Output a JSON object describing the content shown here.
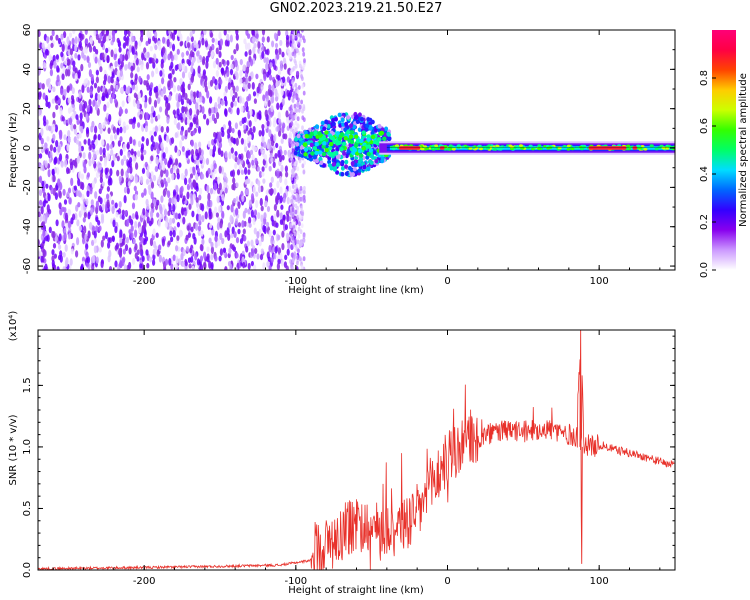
{
  "figure": {
    "title": "GN02.2023.219.21.50.E27"
  },
  "chart_data": [
    {
      "type": "heatmap",
      "xlabel": "Height of straight line (km)",
      "ylabel": "Frequency (Hz)",
      "xlim": [
        -270,
        150
      ],
      "ylim": [
        -62,
        60
      ],
      "xticks": [
        -200,
        -100,
        0,
        100
      ],
      "yticks": [
        60,
        40,
        20,
        0,
        -20,
        -40,
        -60
      ],
      "colorbar": {
        "label": "Normalized spectral amplitude",
        "range": [
          0,
          1
        ],
        "ticks": [
          "0.0",
          "0.2",
          "0.4",
          "0.6",
          "0.8"
        ],
        "colors": [
          "#ffffff",
          "#cc99ff",
          "#8800ee",
          "#3300ff",
          "#0066ff",
          "#00ddff",
          "#00ff66",
          "#33ff00",
          "#ccff00",
          "#ffcc00",
          "#ff4400",
          "#ff0044",
          "#ff0077"
        ]
      },
      "regions": [
        {
          "x_range": [
            -270,
            -95
          ],
          "f_range": [
            -62,
            60
          ],
          "note": "broadband noise"
        },
        {
          "x_range": [
            -100,
            -40
          ],
          "f_range": [
            -10,
            15
          ],
          "note": "energetic burst"
        },
        {
          "x_range": [
            -40,
            150
          ],
          "f_range": [
            -3,
            3
          ],
          "note": "narrow line near 0 Hz"
        }
      ]
    },
    {
      "type": "line",
      "xlabel": "Height of straight line (km)",
      "ylabel": "SNR (10 * v/v)",
      "yscale_note": "(x10⁴)",
      "xlim": [
        -270,
        150
      ],
      "ylim": [
        0,
        1.95
      ],
      "xticks": [
        -200,
        -100,
        0,
        100
      ],
      "yticks": [
        "0.0",
        "0.5",
        "1.0",
        "1.5"
      ],
      "color": "#e8312a",
      "x": [
        -270,
        -200,
        -150,
        -110,
        -90,
        -80,
        -70,
        -60,
        -50,
        -40,
        -30,
        -20,
        -10,
        0,
        10,
        20,
        30,
        40,
        50,
        60,
        70,
        80,
        85,
        88,
        90,
        95,
        100,
        110,
        120,
        130,
        140,
        150
      ],
      "y": [
        0.01,
        0.02,
        0.03,
        0.04,
        0.08,
        0.12,
        0.22,
        0.28,
        0.25,
        0.26,
        0.3,
        0.4,
        0.65,
        0.85,
        0.96,
        1.05,
        1.12,
        1.13,
        1.12,
        1.15,
        1.14,
        1.1,
        1.08,
        1.95,
        1.03,
        1.0,
        1.02,
        0.98,
        0.95,
        0.92,
        0.88,
        0.85
      ]
    }
  ]
}
